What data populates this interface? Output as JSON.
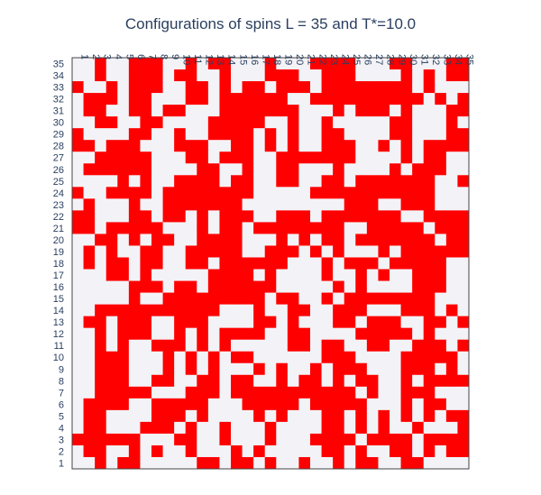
{
  "chart_data": {
    "type": "heatmap",
    "title": "Configurations of spins L = 35 and T*=10.0",
    "xlabel": "",
    "ylabel": "",
    "x_ticks": [
      "1",
      "2",
      "3",
      "4",
      "5",
      "6",
      "7",
      "8",
      "9",
      "10",
      "11",
      "12",
      "13",
      "14",
      "15",
      "16",
      "17",
      "18",
      "19",
      "20",
      "21",
      "22",
      "23",
      "24",
      "25",
      "26",
      "27",
      "28",
      "29",
      "30",
      "31",
      "32",
      "33",
      "34",
      "35"
    ],
    "y_ticks": [
      "1",
      "2",
      "3",
      "4",
      "5",
      "6",
      "7",
      "8",
      "9",
      "10",
      "11",
      "12",
      "13",
      "14",
      "15",
      "16",
      "17",
      "18",
      "19",
      "20",
      "21",
      "22",
      "23",
      "24",
      "25",
      "26",
      "27",
      "28",
      "29",
      "30",
      "31",
      "32",
      "33",
      "34",
      "35"
    ],
    "x_tick_orientation": "vertical",
    "values_legend": {
      "1": "spin up (red)",
      "0": "spin down (light grey)"
    },
    "grid_rows_top_to_bottom": [
      "00100111001011000100011110001100011",
      "00100111011001000111001110000101011",
      "10010111001101011011101111111101000",
      "01110110001101111110011111111110101",
      "01100110110001111111000101110100011",
      "00110011000011111001001000001100010",
      "10000110010011110101001100001100011",
      "11011100011100110101001110010101111",
      "00111110001101110011111110000101100",
      "01111110000110010011000100001011100",
      "00001010011110110011001101111111001",
      "10011110111111110000011111111111000",
      "01000100111111100000000011100111000",
      "11000110110101110011101111111001111",
      "11011111000101101111111100111110111",
      "00110101100111100010101101111111011",
      "01010011001111100111010100010111111",
      "01011011001101111110001011101111100",
      "00011010000011110100001001010011100",
      "00000111011011111100000101000011100",
      "00000100111111111011001011111111000",
      "00111111111110001001100111000111010",
      "01101110011100001101000110111001101",
      "00101110010101111001100001111101000",
      "00101001110101000001101100110011101",
      "00111000101010110000001110000111110",
      "00111000101010001010010111000111010",
      "00111001100110110010110101100101111",
      "00111110001110111111111110100111000",
      "01111001111100011111011111000101100",
      "01100001110100001010001101010101011",
      "01100011101001000100001101010010001",
      "11111100011001000100011110111101111",
      "01100101001000101000001101001101011",
      "00101100000110110100100101100110000"
    ],
    "colors": {
      "up": "#ff0000",
      "down": "#f3f3f7",
      "title": "#2a3f5f",
      "ticks": "#2a3f5f"
    }
  }
}
